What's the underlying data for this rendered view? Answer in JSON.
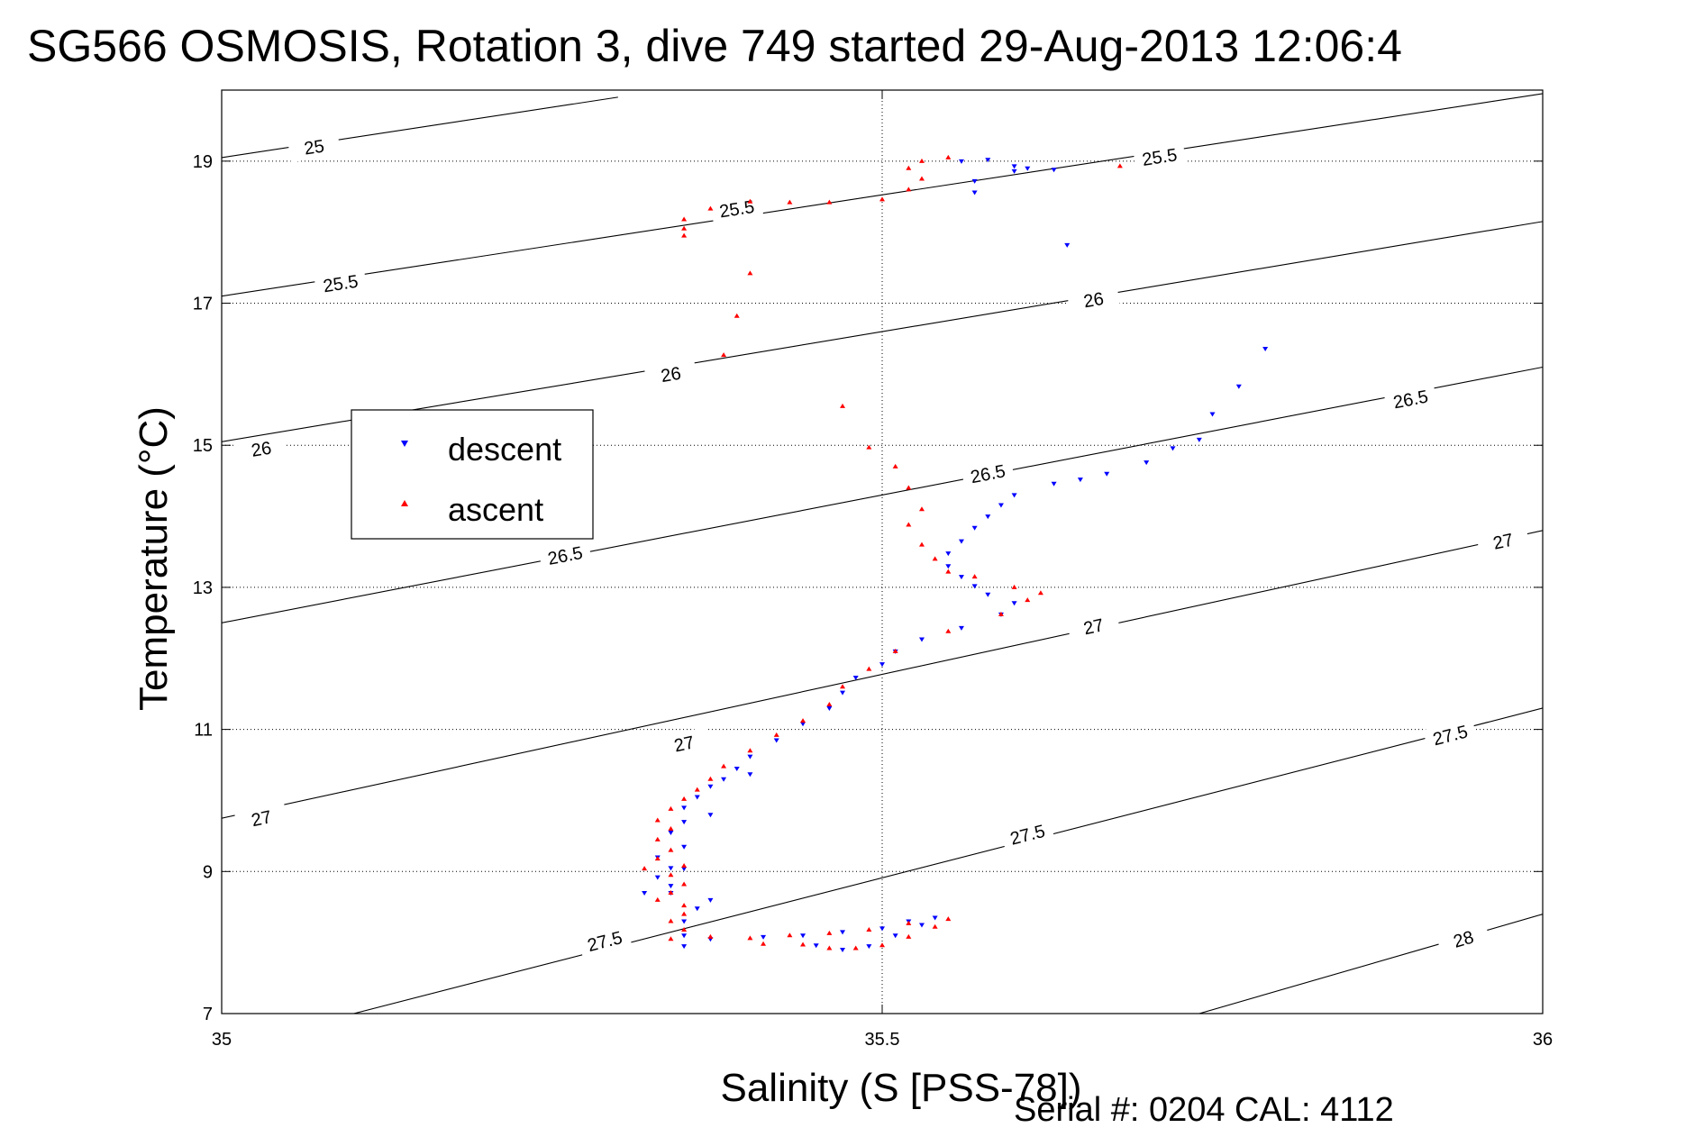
{
  "chart_data": {
    "type": "scatter",
    "title": "SG566 OSMOSIS, Rotation 3, dive 749 started 29-Aug-2013 12:06:4",
    "xlabel": "Salinity (S [PSS-78])",
    "ylabel": "Temperature (°C)",
    "xlim": [
      35,
      36
    ],
    "ylim": [
      7,
      20
    ],
    "xticks": [
      35,
      35.5,
      36
    ],
    "xtick_labels": [
      "35",
      "35.5",
      "36"
    ],
    "yticks": [
      7,
      9,
      11,
      13,
      15,
      17,
      19
    ],
    "ytick_labels": [
      "7",
      "9",
      "11",
      "13",
      "15",
      "17",
      "19"
    ],
    "grid": "dotted",
    "legend_position": "left",
    "footer": "Serial #: 0204  CAL: 4112",
    "contours": [
      {
        "label": "25",
        "endpoints": [
          [
            35.0,
            19.05
          ],
          [
            35.3,
            19.9
          ]
        ],
        "label_positions": [
          [
            35.07,
            19.2
          ]
        ]
      },
      {
        "label": "25.5",
        "endpoints": [
          [
            35.0,
            17.1
          ],
          [
            36.0,
            19.95
          ]
        ],
        "label_positions": [
          [
            35.09,
            17.28
          ],
          [
            35.39,
            18.33
          ],
          [
            35.71,
            19.06
          ]
        ]
      },
      {
        "label": "26",
        "endpoints": [
          [
            35.0,
            15.05
          ],
          [
            36.0,
            18.15
          ]
        ],
        "label_positions": [
          [
            35.03,
            14.95
          ],
          [
            35.34,
            16.0
          ],
          [
            35.66,
            17.05
          ]
        ]
      },
      {
        "label": "26.5",
        "endpoints": [
          [
            35.0,
            12.5
          ],
          [
            36.0,
            16.1
          ]
        ],
        "label_positions": [
          [
            35.26,
            13.45
          ],
          [
            35.58,
            14.6
          ],
          [
            35.9,
            15.65
          ]
        ]
      },
      {
        "label": "27",
        "endpoints": [
          [
            35.0,
            9.75
          ],
          [
            36.0,
            13.8
          ]
        ],
        "label_positions": [
          [
            35.03,
            9.75
          ],
          [
            35.35,
            10.8
          ],
          [
            35.66,
            12.45
          ],
          [
            35.97,
            13.65
          ]
        ]
      },
      {
        "label": "27.5",
        "endpoints": [
          [
            35.1,
            7.0
          ],
          [
            36.0,
            11.3
          ]
        ],
        "label_positions": [
          [
            35.29,
            8.02
          ],
          [
            35.61,
            9.52
          ],
          [
            35.93,
            10.92
          ]
        ]
      },
      {
        "label": "28",
        "endpoints": [
          [
            35.74,
            7.0
          ],
          [
            36.0,
            8.4
          ]
        ],
        "label_positions": [
          [
            35.94,
            8.05
          ]
        ]
      }
    ],
    "series": [
      {
        "name": "descent",
        "color": "#0000ff",
        "marker": "down-triangle",
        "points": [
          [
            35.56,
            19.0
          ],
          [
            35.58,
            19.02
          ],
          [
            35.6,
            18.93
          ],
          [
            35.61,
            18.9
          ],
          [
            35.63,
            18.88
          ],
          [
            35.6,
            18.86
          ],
          [
            35.57,
            18.72
          ],
          [
            35.57,
            18.56
          ],
          [
            35.64,
            17.82
          ],
          [
            35.79,
            16.36
          ],
          [
            35.77,
            15.83
          ],
          [
            35.75,
            15.44
          ],
          [
            35.74,
            15.08
          ],
          [
            35.72,
            14.96
          ],
          [
            35.7,
            14.76
          ],
          [
            35.67,
            14.6
          ],
          [
            35.65,
            14.52
          ],
          [
            35.63,
            14.46
          ],
          [
            35.6,
            14.3
          ],
          [
            35.59,
            14.16
          ],
          [
            35.58,
            14.0
          ],
          [
            35.57,
            13.84
          ],
          [
            35.56,
            13.65
          ],
          [
            35.55,
            13.48
          ],
          [
            35.55,
            13.3
          ],
          [
            35.56,
            13.15
          ],
          [
            35.57,
            13.02
          ],
          [
            35.58,
            12.9
          ],
          [
            35.6,
            12.78
          ],
          [
            35.59,
            12.62
          ],
          [
            35.56,
            12.43
          ],
          [
            35.53,
            12.27
          ],
          [
            35.51,
            12.1
          ],
          [
            35.5,
            11.92
          ],
          [
            35.48,
            11.73
          ],
          [
            35.47,
            11.52
          ],
          [
            35.46,
            11.3
          ],
          [
            35.44,
            11.08
          ],
          [
            35.42,
            10.85
          ],
          [
            35.4,
            10.62
          ],
          [
            35.39,
            10.45
          ],
          [
            35.4,
            10.37
          ],
          [
            35.38,
            10.3
          ],
          [
            35.37,
            10.2
          ],
          [
            35.36,
            10.05
          ],
          [
            35.35,
            9.9
          ],
          [
            35.37,
            9.8
          ],
          [
            35.35,
            9.7
          ],
          [
            35.34,
            9.55
          ],
          [
            35.35,
            9.35
          ],
          [
            35.33,
            9.2
          ],
          [
            35.34,
            9.05
          ],
          [
            35.35,
            9.04
          ],
          [
            35.33,
            8.92
          ],
          [
            35.34,
            8.8
          ],
          [
            35.32,
            8.7
          ],
          [
            35.34,
            8.7
          ],
          [
            35.37,
            8.6
          ],
          [
            35.36,
            8.48
          ],
          [
            35.35,
            8.3
          ],
          [
            35.35,
            8.1
          ],
          [
            35.35,
            7.95
          ],
          [
            35.37,
            8.05
          ],
          [
            35.41,
            8.08
          ],
          [
            35.44,
            8.1
          ],
          [
            35.47,
            8.15
          ],
          [
            35.5,
            8.2
          ],
          [
            35.52,
            8.3
          ],
          [
            35.54,
            8.35
          ],
          [
            35.53,
            8.25
          ],
          [
            35.51,
            8.1
          ],
          [
            35.49,
            7.95
          ],
          [
            35.47,
            7.9
          ],
          [
            35.45,
            7.96
          ]
        ]
      },
      {
        "name": "ascent",
        "color": "#ff0000",
        "marker": "up-triangle",
        "points": [
          [
            35.68,
            18.93
          ],
          [
            35.55,
            19.05
          ],
          [
            35.53,
            19.0
          ],
          [
            35.52,
            18.9
          ],
          [
            35.53,
            18.75
          ],
          [
            35.52,
            18.6
          ],
          [
            35.5,
            18.46
          ],
          [
            35.46,
            18.42
          ],
          [
            35.43,
            18.42
          ],
          [
            35.4,
            18.43
          ],
          [
            35.37,
            18.33
          ],
          [
            35.35,
            18.18
          ],
          [
            35.35,
            18.05
          ],
          [
            35.35,
            17.95
          ],
          [
            35.4,
            17.42
          ],
          [
            35.39,
            16.82
          ],
          [
            35.38,
            16.27
          ],
          [
            35.47,
            15.55
          ],
          [
            35.49,
            14.97
          ],
          [
            35.51,
            14.7
          ],
          [
            35.52,
            14.4
          ],
          [
            35.53,
            14.1
          ],
          [
            35.52,
            13.88
          ],
          [
            35.53,
            13.6
          ],
          [
            35.54,
            13.4
          ],
          [
            35.55,
            13.22
          ],
          [
            35.57,
            13.15
          ],
          [
            35.6,
            13.0
          ],
          [
            35.62,
            12.92
          ],
          [
            35.61,
            12.82
          ],
          [
            35.59,
            12.62
          ],
          [
            35.55,
            12.38
          ],
          [
            35.51,
            12.1
          ],
          [
            35.49,
            11.85
          ],
          [
            35.47,
            11.6
          ],
          [
            35.46,
            11.35
          ],
          [
            35.44,
            11.12
          ],
          [
            35.42,
            10.92
          ],
          [
            35.4,
            10.7
          ],
          [
            35.38,
            10.48
          ],
          [
            35.37,
            10.3
          ],
          [
            35.36,
            10.15
          ],
          [
            35.35,
            10.02
          ],
          [
            35.34,
            9.88
          ],
          [
            35.33,
            9.72
          ],
          [
            35.34,
            9.6
          ],
          [
            35.33,
            9.45
          ],
          [
            35.34,
            9.3
          ],
          [
            35.33,
            9.18
          ],
          [
            35.32,
            9.04
          ],
          [
            35.35,
            9.08
          ],
          [
            35.34,
            8.95
          ],
          [
            35.35,
            8.82
          ],
          [
            35.34,
            8.7
          ],
          [
            35.33,
            8.6
          ],
          [
            35.35,
            8.52
          ],
          [
            35.35,
            8.4
          ],
          [
            35.34,
            8.3
          ],
          [
            35.35,
            8.18
          ],
          [
            35.34,
            8.05
          ],
          [
            35.37,
            8.08
          ],
          [
            35.4,
            8.06
          ],
          [
            35.43,
            8.1
          ],
          [
            35.46,
            8.13
          ],
          [
            35.49,
            8.18
          ],
          [
            35.52,
            8.27
          ],
          [
            35.55,
            8.33
          ],
          [
            35.54,
            8.22
          ],
          [
            35.52,
            8.08
          ],
          [
            35.5,
            7.96
          ],
          [
            35.48,
            7.92
          ],
          [
            35.46,
            7.92
          ],
          [
            35.44,
            7.97
          ],
          [
            35.41,
            7.98
          ]
        ]
      }
    ]
  }
}
